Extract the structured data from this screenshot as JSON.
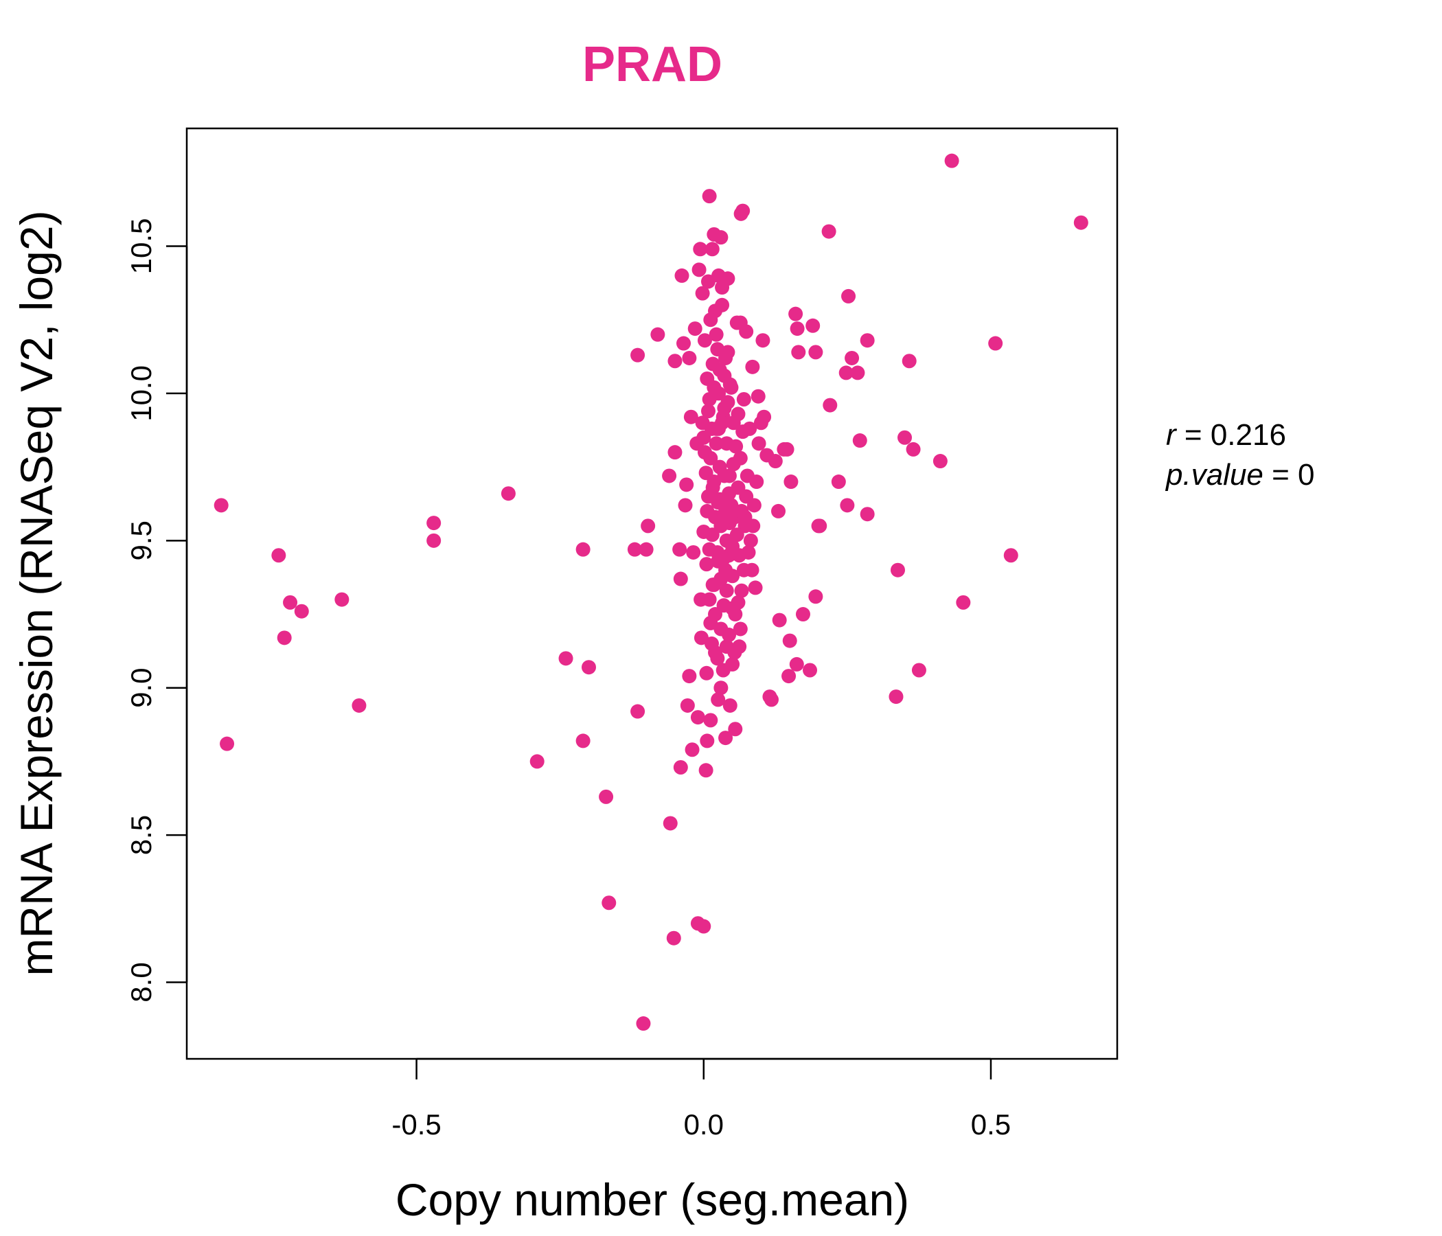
{
  "colors": {
    "accent": "#e62a8a",
    "axis": "#000000",
    "background": "#ffffff"
  },
  "chart_data": {
    "type": "scatter",
    "title": "PRAD",
    "xlabel": "Copy number (seg.mean)",
    "ylabel": "mRNA Expression (RNASeq V2, log2)",
    "xlim": [
      -0.9,
      0.72
    ],
    "ylim": [
      7.74,
      10.9
    ],
    "xticks": [
      -0.5,
      0.0,
      0.5
    ],
    "xtick_labels": [
      "-0.5",
      "0.0",
      "0.5"
    ],
    "yticks": [
      8.0,
      8.5,
      9.0,
      9.5,
      10.0,
      10.5
    ],
    "ytick_labels": [
      "8.0",
      "8.5",
      "9.0",
      "9.5",
      "10.0",
      "10.5"
    ],
    "grid": false,
    "legend": "none",
    "annotations": {
      "r_label": "r",
      "r_value": "0.216",
      "p_label": "p.value",
      "p_value": "0"
    },
    "points": [
      [
        -0.84,
        9.62
      ],
      [
        -0.83,
        8.81
      ],
      [
        -0.74,
        9.45
      ],
      [
        -0.72,
        9.29
      ],
      [
        -0.73,
        9.17
      ],
      [
        -0.7,
        9.26
      ],
      [
        -0.63,
        9.3
      ],
      [
        -0.6,
        8.94
      ],
      [
        -0.47,
        9.56
      ],
      [
        -0.47,
        9.5
      ],
      [
        -0.34,
        9.66
      ],
      [
        -0.29,
        8.75
      ],
      [
        -0.24,
        9.1
      ],
      [
        -0.21,
        9.47
      ],
      [
        -0.21,
        8.82
      ],
      [
        -0.2,
        9.07
      ],
      [
        -0.17,
        8.63
      ],
      [
        -0.165,
        8.27
      ],
      [
        -0.12,
        9.47
      ],
      [
        -0.115,
        8.92
      ],
      [
        -0.115,
        10.13
      ],
      [
        -0.105,
        7.86
      ],
      [
        -0.1,
        9.47
      ],
      [
        -0.097,
        9.55
      ],
      [
        -0.08,
        10.2
      ],
      [
        -0.06,
        9.72
      ],
      [
        -0.058,
        8.54
      ],
      [
        -0.052,
        8.15
      ],
      [
        -0.05,
        9.8
      ],
      [
        -0.05,
        10.11
      ],
      [
        -0.042,
        9.47
      ],
      [
        -0.04,
        9.37
      ],
      [
        -0.04,
        8.73
      ],
      [
        -0.038,
        10.4
      ],
      [
        -0.035,
        10.17
      ],
      [
        -0.032,
        9.62
      ],
      [
        -0.03,
        9.69
      ],
      [
        -0.028,
        8.94
      ],
      [
        -0.025,
        10.12
      ],
      [
        -0.025,
        9.04
      ],
      [
        -0.022,
        9.92
      ],
      [
        -0.02,
        8.79
      ],
      [
        -0.018,
        9.46
      ],
      [
        -0.015,
        10.22
      ],
      [
        -0.012,
        9.83
      ],
      [
        -0.01,
        8.9
      ],
      [
        -0.01,
        8.2
      ],
      [
        -0.008,
        10.42
      ],
      [
        -0.006,
        10.49
      ],
      [
        -0.005,
        9.3
      ],
      [
        -0.004,
        9.17
      ],
      [
        -0.002,
        10.34
      ],
      [
        0.0,
        9.53
      ],
      [
        0.0,
        8.19
      ],
      [
        0.002,
        9.8
      ],
      [
        0.004,
        8.72
      ],
      [
        0.005,
        9.05
      ],
      [
        0.006,
        8.82
      ],
      [
        0.008,
        10.38
      ],
      [
        0.01,
        10.67
      ],
      [
        0.01,
        9.98
      ],
      [
        0.012,
        9.22
      ],
      [
        0.012,
        8.89
      ],
      [
        0.015,
        10.49
      ],
      [
        0.016,
        9.68
      ],
      [
        0.018,
        10.54
      ],
      [
        0.018,
        9.35
      ],
      [
        0.02,
        10.28
      ],
      [
        0.02,
        9.12
      ],
      [
        0.022,
        9.88
      ],
      [
        0.024,
        10.15
      ],
      [
        0.025,
        9.43
      ],
      [
        0.025,
        8.96
      ],
      [
        0.026,
        10.4
      ],
      [
        0.028,
        9.75
      ],
      [
        0.03,
        10.53
      ],
      [
        0.03,
        9.55
      ],
      [
        0.03,
        9.0
      ],
      [
        0.032,
        10.36
      ],
      [
        0.034,
        9.92
      ],
      [
        0.035,
        9.28
      ],
      [
        0.036,
        10.06
      ],
      [
        0.038,
        9.6
      ],
      [
        0.038,
        8.83
      ],
      [
        0.04,
        9.14
      ],
      [
        0.04,
        9.83
      ],
      [
        0.042,
        10.39
      ],
      [
        0.044,
        9.45
      ],
      [
        0.045,
        9.72
      ],
      [
        0.046,
        8.94
      ],
      [
        0.048,
        10.02
      ],
      [
        0.05,
        9.38
      ],
      [
        0.05,
        9.08
      ],
      [
        0.052,
        9.9
      ],
      [
        0.054,
        9.58
      ],
      [
        0.055,
        9.25
      ],
      [
        0.055,
        8.86
      ],
      [
        0.058,
        10.24
      ],
      [
        0.06,
        9.68
      ],
      [
        0.062,
        9.14
      ],
      [
        0.064,
        10.24
      ],
      [
        0.065,
        10.61
      ],
      [
        0.066,
        9.33
      ],
      [
        0.068,
        10.62
      ],
      [
        0.07,
        9.98
      ],
      [
        0.072,
        9.55
      ],
      [
        0.074,
        10.21
      ],
      [
        0.076,
        9.72
      ],
      [
        0.08,
        9.88
      ],
      [
        0.082,
        9.5
      ],
      [
        0.085,
        10.09
      ],
      [
        0.088,
        9.62
      ],
      [
        0.09,
        9.34
      ],
      [
        0.092,
        9.7
      ],
      [
        0.095,
        9.99
      ],
      [
        0.096,
        9.83
      ],
      [
        0.1,
        9.9
      ],
      [
        0.103,
        10.18
      ],
      [
        0.105,
        9.92
      ],
      [
        0.11,
        9.79
      ],
      [
        0.115,
        8.97
      ],
      [
        0.118,
        8.96
      ],
      [
        0.125,
        9.77
      ],
      [
        0.13,
        9.6
      ],
      [
        0.132,
        9.23
      ],
      [
        0.14,
        9.81
      ],
      [
        0.145,
        9.81
      ],
      [
        0.148,
        9.04
      ],
      [
        0.15,
        9.16
      ],
      [
        0.152,
        9.7
      ],
      [
        0.16,
        10.27
      ],
      [
        0.162,
        9.08
      ],
      [
        0.163,
        10.22
      ],
      [
        0.165,
        10.14
      ],
      [
        0.173,
        9.25
      ],
      [
        0.185,
        9.06
      ],
      [
        0.19,
        10.23
      ],
      [
        0.195,
        10.14
      ],
      [
        0.195,
        9.31
      ],
      [
        0.2,
        9.55
      ],
      [
        0.202,
        9.55
      ],
      [
        0.218,
        10.55
      ],
      [
        0.22,
        9.96
      ],
      [
        0.235,
        9.7
      ],
      [
        0.248,
        10.07
      ],
      [
        0.25,
        9.62
      ],
      [
        0.252,
        10.33
      ],
      [
        0.258,
        10.12
      ],
      [
        0.268,
        10.07
      ],
      [
        0.272,
        9.84
      ],
      [
        0.285,
        10.18
      ],
      [
        0.285,
        9.59
      ],
      [
        0.335,
        8.97
      ],
      [
        0.338,
        9.4
      ],
      [
        0.35,
        9.85
      ],
      [
        0.358,
        10.11
      ],
      [
        0.365,
        9.81
      ],
      [
        0.375,
        9.06
      ],
      [
        0.412,
        9.77
      ],
      [
        0.432,
        10.79
      ],
      [
        0.452,
        9.29
      ],
      [
        0.508,
        10.17
      ],
      [
        0.535,
        9.45
      ],
      [
        0.657,
        10.58
      ],
      [
        0.005,
        9.42
      ],
      [
        0.01,
        9.47
      ],
      [
        0.015,
        9.52
      ],
      [
        0.02,
        9.58
      ],
      [
        0.025,
        9.63
      ],
      [
        0.03,
        9.37
      ],
      [
        0.035,
        9.44
      ],
      [
        0.04,
        9.5
      ],
      [
        0.045,
        9.56
      ],
      [
        0.05,
        9.48
      ],
      [
        0.008,
        9.65
      ],
      [
        0.018,
        9.7
      ],
      [
        0.028,
        9.64
      ],
      [
        0.038,
        9.4
      ],
      [
        0.048,
        9.62
      ],
      [
        0.012,
        9.78
      ],
      [
        0.022,
        9.83
      ],
      [
        0.032,
        9.9
      ],
      [
        0.042,
        9.97
      ],
      [
        0.052,
        9.76
      ],
      [
        0.006,
        10.05
      ],
      [
        0.016,
        10.1
      ],
      [
        0.026,
        10.0
      ],
      [
        0.036,
        9.95
      ],
      [
        0.046,
        10.03
      ],
      [
        0.01,
        9.3
      ],
      [
        0.02,
        9.25
      ],
      [
        0.03,
        9.2
      ],
      [
        0.04,
        9.33
      ],
      [
        0.05,
        9.27
      ],
      [
        0.014,
        9.15
      ],
      [
        0.024,
        9.1
      ],
      [
        0.034,
        9.06
      ],
      [
        0.044,
        9.18
      ],
      [
        0.054,
        9.12
      ],
      [
        0.002,
        10.18
      ],
      [
        0.012,
        10.25
      ],
      [
        0.022,
        10.2
      ],
      [
        0.032,
        10.3
      ],
      [
        0.042,
        10.14
      ],
      [
        0.0,
        9.85
      ],
      [
        0.006,
        9.6
      ],
      [
        0.016,
        9.35
      ],
      [
        0.026,
        9.88
      ],
      [
        0.036,
        9.72
      ],
      [
        0.058,
        9.52
      ],
      [
        0.062,
        9.45
      ],
      [
        0.066,
        9.6
      ],
      [
        0.07,
        9.4
      ],
      [
        0.074,
        9.65
      ],
      [
        0.056,
        9.82
      ],
      [
        0.06,
        9.93
      ],
      [
        0.064,
        9.78
      ],
      [
        0.068,
        9.87
      ],
      [
        0.072,
        9.58
      ],
      [
        0.078,
        9.46
      ],
      [
        0.084,
        9.4
      ],
      [
        0.086,
        9.55
      ],
      [
        0.06,
        9.29
      ],
      [
        0.064,
        9.2
      ],
      [
        0.004,
        9.73
      ],
      [
        0.014,
        9.88
      ],
      [
        0.024,
        9.46
      ],
      [
        0.034,
        9.57
      ],
      [
        0.044,
        9.66
      ],
      [
        -0.002,
        9.9
      ],
      [
        0.008,
        9.94
      ],
      [
        0.018,
        10.02
      ],
      [
        0.028,
        10.08
      ],
      [
        0.038,
        10.12
      ]
    ]
  }
}
